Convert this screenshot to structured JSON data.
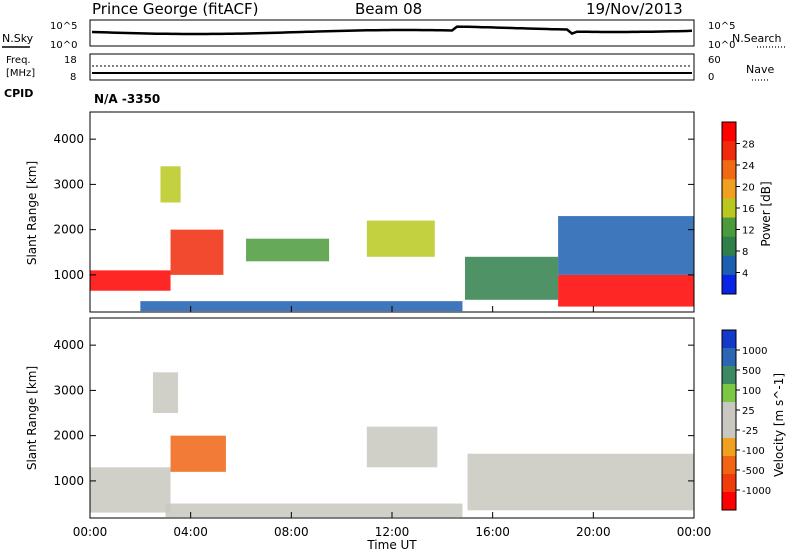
{
  "header": {
    "station": "Prince George (fitACF)",
    "beam": "Beam 08",
    "date": "19/Nov/2013"
  },
  "noise_panel": {
    "left_label": "N.Sky",
    "right_label": "N.Search",
    "ticks_left": [
      "10^5",
      "10^0"
    ],
    "ticks_right": [
      "10^5",
      "10^0"
    ]
  },
  "freq_panel": {
    "left_label_1": "Freq.",
    "left_label_2": "[MHz]",
    "ticks_left": [
      "18",
      "8"
    ],
    "ticks_right": [
      "60",
      "0"
    ],
    "right_label": "Nave"
  },
  "cpid": {
    "label": "CPID",
    "value": "N/A -3350"
  },
  "x_axis": {
    "label": "Time UT",
    "ticks": [
      "00:00",
      "04:00",
      "08:00",
      "12:00",
      "16:00",
      "20:00",
      "00:00"
    ]
  },
  "power_panel": {
    "ylabel": "Slant Range [km]",
    "yticks": [
      "4000",
      "3000",
      "2000",
      "1000"
    ],
    "colorbar_label": "Power [dB]",
    "colorbar_ticks": [
      "28",
      "24",
      "20",
      "16",
      "12",
      "8",
      "4"
    ],
    "colors": [
      "#0a24e6",
      "#1c5fb0",
      "#2f7f4a",
      "#4b9a3c",
      "#b8c81e",
      "#f0a01e",
      "#f06a14",
      "#f02a0a",
      "#ff0000"
    ]
  },
  "velocity_panel": {
    "ylabel": "Slant Range [km]",
    "yticks": [
      "4000",
      "3000",
      "2000",
      "1000"
    ],
    "colorbar_label": "Velocity [m s^-1]",
    "colorbar_ticks": [
      "1000",
      "500",
      "100",
      "25",
      "-25",
      "-100",
      "-500",
      "-1000"
    ],
    "colors": [
      "#1438c8",
      "#2a66b4",
      "#3c8a64",
      "#7cc844",
      "#c8c8c0",
      "#c8c8c0",
      "#f0a01e",
      "#f06414",
      "#f03c0a",
      "#ff0000"
    ]
  },
  "chart_data": {
    "type": "heatmap",
    "x_range_hours": [
      0,
      24
    ],
    "y_range_km": [
      180,
      4600
    ],
    "panels": [
      {
        "name": "Power",
        "units": "dB",
        "colorbar_range": [
          0,
          30
        ],
        "regions": [
          {
            "t0": 0.0,
            "t1": 3.2,
            "r0": 650,
            "r1": 1100,
            "value": 28
          },
          {
            "t0": 3.2,
            "t1": 5.3,
            "r0": 1000,
            "r1": 2000,
            "value": 24
          },
          {
            "t0": 2.8,
            "t1": 3.6,
            "r0": 2600,
            "r1": 3400,
            "value": 16
          },
          {
            "t0": 6.2,
            "t1": 9.5,
            "r0": 1300,
            "r1": 1800,
            "value": 12
          },
          {
            "t0": 11.0,
            "t1": 13.7,
            "r0": 1400,
            "r1": 2200,
            "value": 14
          },
          {
            "t0": 14.9,
            "t1": 18.6,
            "r0": 450,
            "r1": 1400,
            "value": 8
          },
          {
            "t0": 18.6,
            "t1": 24.0,
            "r0": 300,
            "r1": 1000,
            "value": 30
          },
          {
            "t0": 18.6,
            "t1": 24.0,
            "r0": 1000,
            "r1": 2300,
            "value": 6
          },
          {
            "t0": 2.0,
            "t1": 14.8,
            "r0": 200,
            "r1": 420,
            "value": 4
          }
        ]
      },
      {
        "name": "Velocity",
        "units": "m s^-1",
        "colorbar_range": [
          -1000,
          1000
        ],
        "regions": [
          {
            "t0": 0.0,
            "t1": 3.2,
            "r0": 300,
            "r1": 1300,
            "value": 0
          },
          {
            "t0": 3.2,
            "t1": 5.4,
            "r0": 1200,
            "r1": 2000,
            "value": -600
          },
          {
            "t0": 2.5,
            "t1": 3.5,
            "r0": 2500,
            "r1": 3400,
            "value": -100
          },
          {
            "t0": 11.0,
            "t1": 13.8,
            "r0": 1300,
            "r1": 2200,
            "value": -200
          },
          {
            "t0": 15.0,
            "t1": 24.0,
            "r0": 350,
            "r1": 1600,
            "value": 0
          },
          {
            "t0": 3.0,
            "t1": 14.8,
            "r0": 200,
            "r1": 500,
            "value": -100
          }
        ]
      }
    ]
  }
}
